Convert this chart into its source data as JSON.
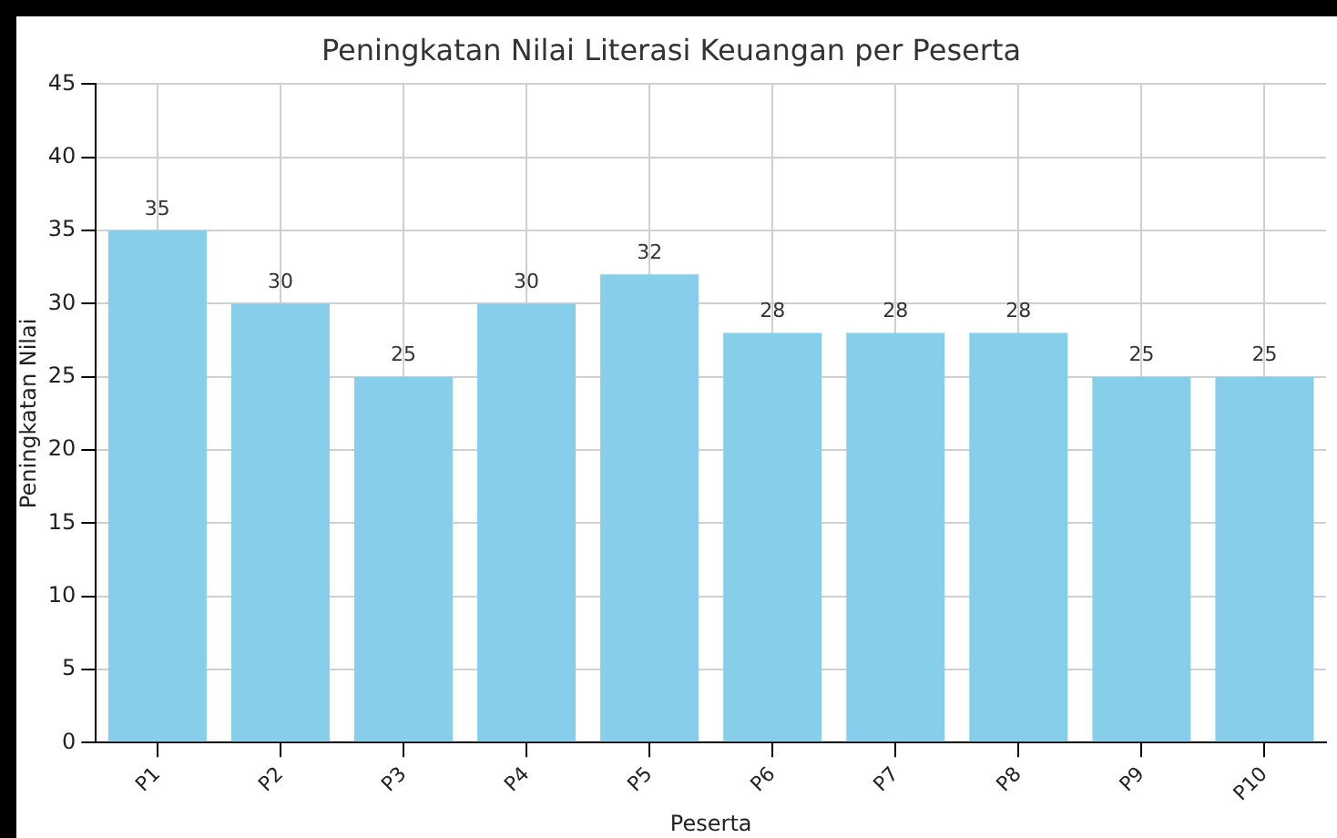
{
  "chart_data": {
    "type": "bar",
    "title": "Peningkatan Nilai Literasi Keuangan per Peserta",
    "xlabel": "Peserta",
    "ylabel": "Peningkatan Nilai",
    "categories": [
      "P1",
      "P2",
      "P3",
      "P4",
      "P5",
      "P6",
      "P7",
      "P8",
      "P9",
      "P10"
    ],
    "values": [
      35,
      30,
      25,
      30,
      32,
      28,
      28,
      28,
      25,
      25
    ],
    "color": "#87ceeb",
    "ylim": [
      0,
      45
    ],
    "yticks": [
      0,
      5,
      10,
      15,
      20,
      25,
      30,
      35,
      40,
      45
    ],
    "grid": true,
    "data_labels": true
  }
}
